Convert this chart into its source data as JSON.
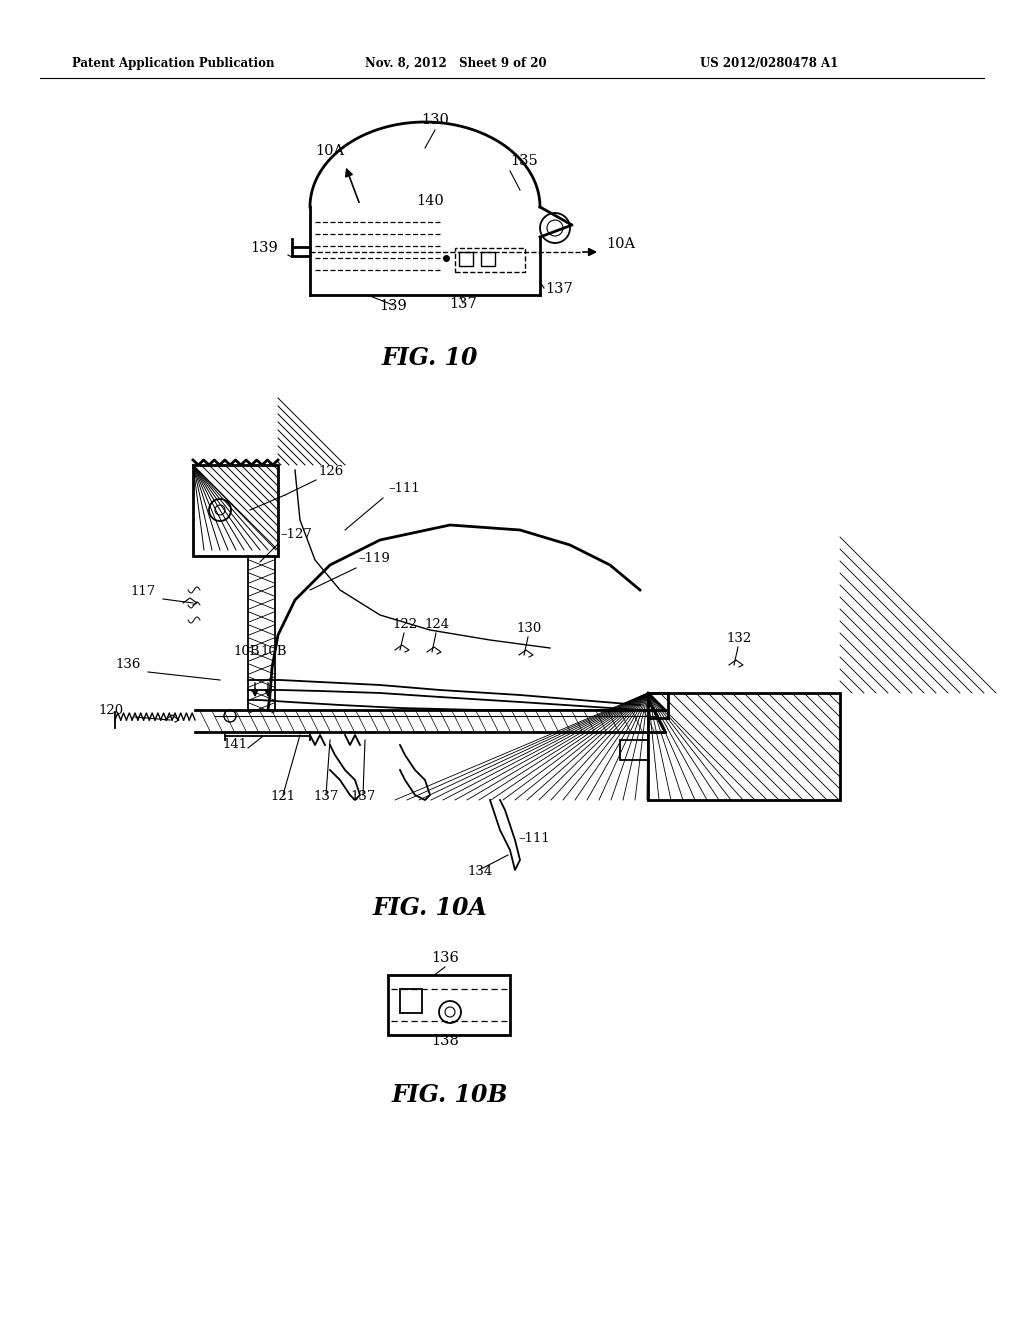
{
  "background_color": "#ffffff",
  "header_left": "Patent Application Publication",
  "header_mid": "Nov. 8, 2012   Sheet 9 of 20",
  "header_right": "US 2012/0280478 A1",
  "fig10_caption": "FIG. 10",
  "fig10a_caption": "FIG. 10A",
  "fig10b_caption": "FIG. 10B"
}
